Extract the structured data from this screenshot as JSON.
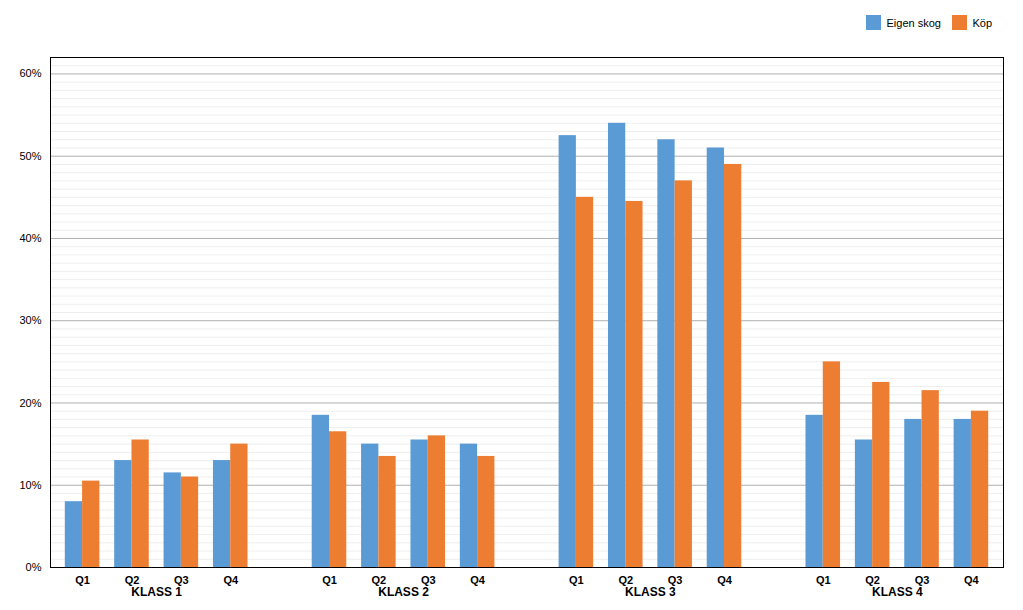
{
  "chart_data": {
    "type": "bar",
    "categories": [
      "Q1",
      "Q2",
      "Q3",
      "Q4",
      "Q1",
      "Q2",
      "Q3",
      "Q4",
      "Q1",
      "Q2",
      "Q3",
      "Q4",
      "Q1",
      "Q2",
      "Q3",
      "Q4"
    ],
    "groups": [
      "KLASS 1",
      "KLASS 2",
      "KLASS 3",
      "KLASS 4"
    ],
    "series": [
      {
        "name": "Eigen skog",
        "color": "#5B9BD5",
        "values": [
          8.0,
          13.0,
          11.5,
          13.0,
          18.5,
          15.0,
          15.5,
          15.0,
          52.5,
          54.0,
          52.0,
          51.0,
          18.5,
          15.5,
          18.0,
          18.0
        ]
      },
      {
        "name": "Köp",
        "color": "#ED7D31",
        "values": [
          10.5,
          15.5,
          11.0,
          15.0,
          16.5,
          13.5,
          16.0,
          13.5,
          45.0,
          44.5,
          47.0,
          49.0,
          25.0,
          22.5,
          21.5,
          19.0
        ]
      }
    ],
    "ylim": [
      0,
      62
    ],
    "yticks": [
      {
        "value": 0,
        "label": "0%"
      },
      {
        "value": 10,
        "label": "10%"
      },
      {
        "value": 20,
        "label": "20%"
      },
      {
        "value": 30,
        "label": "30%"
      },
      {
        "value": 40,
        "label": "40%"
      },
      {
        "value": 50,
        "label": "50%"
      },
      {
        "value": 60,
        "label": "60%"
      }
    ],
    "yticks_minor": [
      1,
      2,
      3,
      4,
      5,
      6,
      7,
      8,
      9,
      11,
      12,
      13,
      14,
      15,
      16,
      17,
      18,
      19,
      21,
      22,
      23,
      24,
      25,
      26,
      27,
      28,
      29,
      31,
      32,
      33,
      34,
      35,
      36,
      37,
      38,
      39,
      41,
      42,
      43,
      44,
      45,
      46,
      47,
      48,
      49,
      51,
      52,
      53,
      54,
      55,
      56,
      57,
      58,
      59,
      61
    ],
    "grid": true,
    "legend": "upper right"
  }
}
